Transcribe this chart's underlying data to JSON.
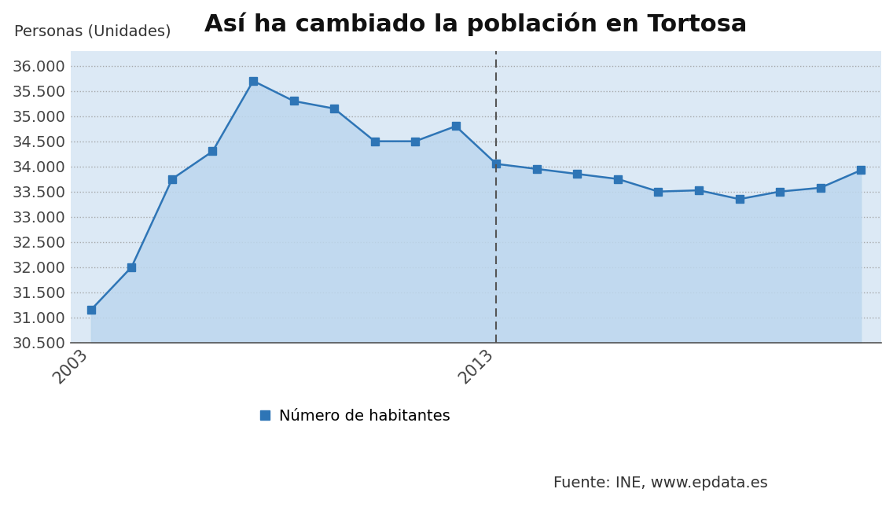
{
  "title": "Así ha cambiado la población en Tortosa",
  "ylabel": "Personas (Unidades)",
  "years": [
    2003,
    2004,
    2005,
    2006,
    2007,
    2008,
    2009,
    2010,
    2011,
    2012,
    2013,
    2014,
    2015,
    2016,
    2017,
    2018,
    2019,
    2020,
    2021,
    2022
  ],
  "values": [
    31150,
    32000,
    33750,
    34300,
    35700,
    35300,
    35150,
    34500,
    34500,
    34800,
    34050,
    33950,
    33850,
    33750,
    33500,
    33525,
    33350,
    33500,
    33575,
    33925
  ],
  "line_color": "#2E75B6",
  "fill_color": "#BDD7EE",
  "marker": "s",
  "marker_size": 7,
  "ylim_min": 30500,
  "ylim_max": 36300,
  "yticks": [
    30500,
    31000,
    31500,
    32000,
    32500,
    33000,
    33500,
    34000,
    34500,
    35000,
    35500,
    36000
  ],
  "split_year": 2013,
  "bg_color": "#ffffff",
  "plot_bg_color": "#dce9f5",
  "grid_color": "#999999",
  "vline_color": "#555555",
  "legend_label": "Número de habitantes",
  "legend_source": "Fuente: INE, www.epdata.es",
  "title_fontsize": 22,
  "label_fontsize": 14,
  "tick_fontsize": 14,
  "legend_fontsize": 14
}
